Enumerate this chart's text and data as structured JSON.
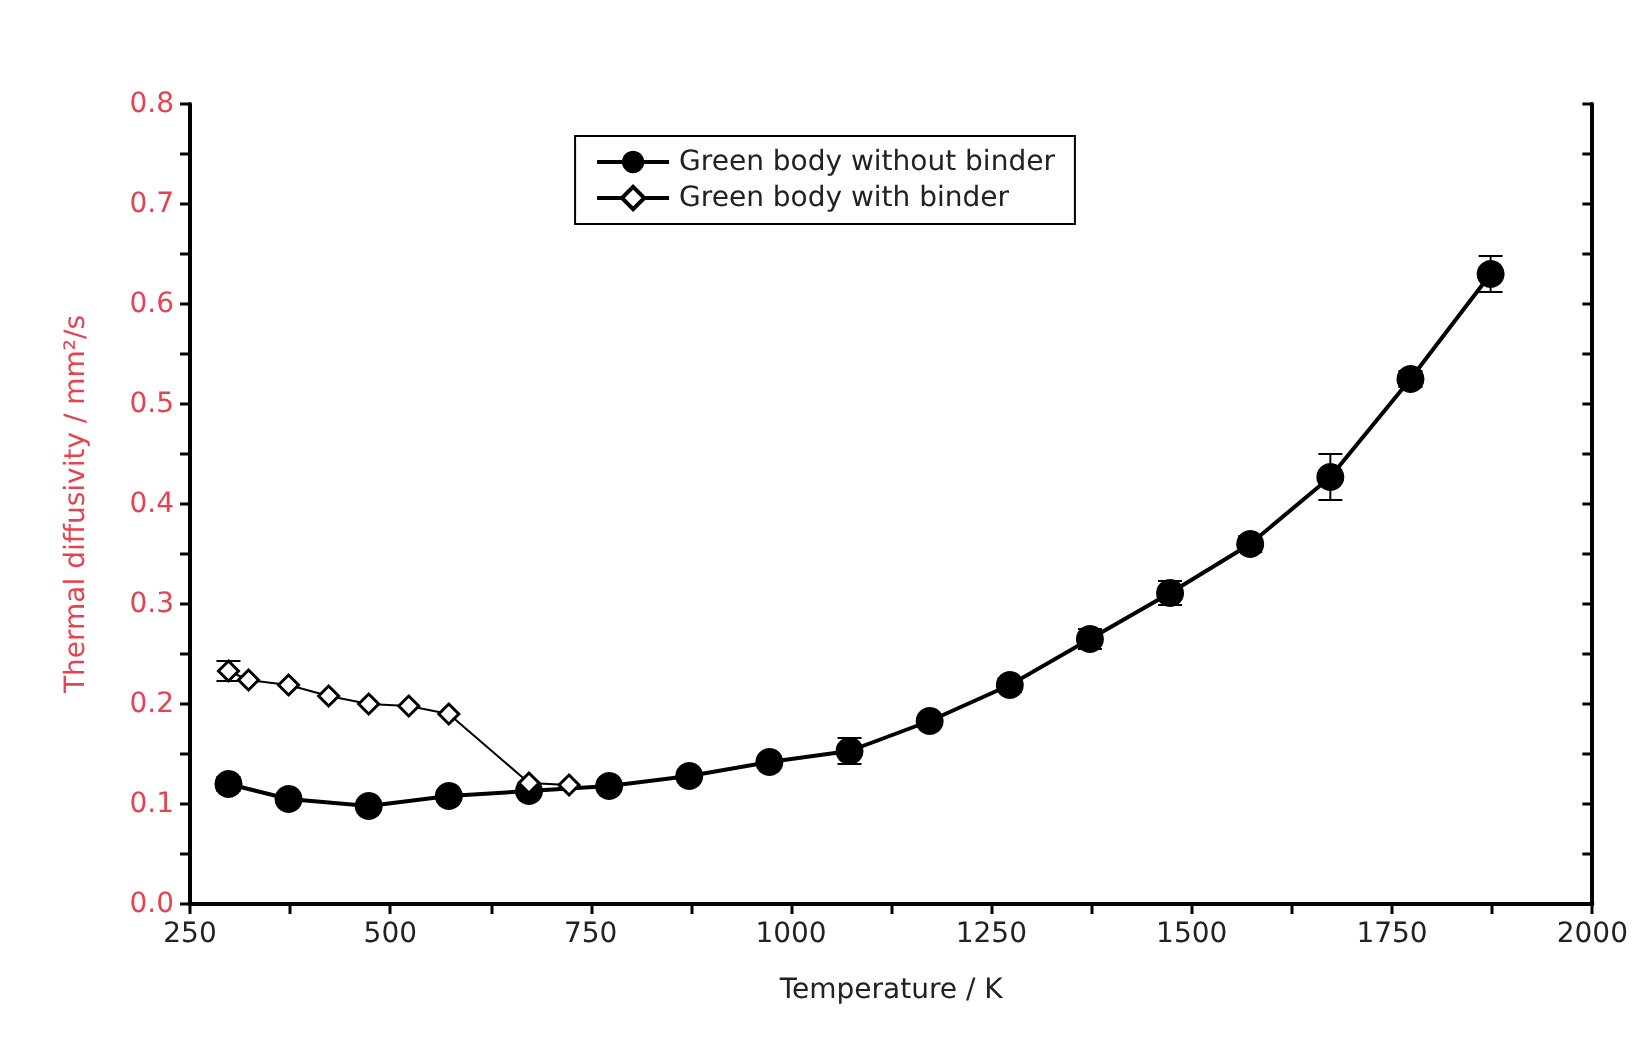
{
  "chart_data": {
    "type": "line",
    "xlabel": "Temperature / K",
    "ylabel": "Thermal diffusivity / mm²/s",
    "xlim": [
      250,
      2000
    ],
    "xticks": [
      250,
      500,
      750,
      1000,
      1250,
      1500,
      1750,
      2000
    ],
    "ylim": [
      0,
      0.8
    ],
    "yticks": [
      {
        "value": 0,
        "label": "0.0"
      },
      0.1,
      0.2,
      0.3,
      0.4,
      0.5,
      0.6,
      0.7,
      0.8
    ],
    "legend": "top",
    "grid": false,
    "series": [
      {
        "name": "Green body without binder",
        "color": "#000000",
        "marker": "circle",
        "x": [
          298,
          373,
          473,
          573,
          673,
          773,
          873,
          973,
          1073,
          1173,
          1273,
          1373,
          1473,
          1573,
          1673,
          1773,
          1873
        ],
        "values": [
          0.12,
          0.105,
          0.098,
          0.108,
          0.113,
          0.118,
          0.128,
          0.142,
          0.153,
          0.183,
          0.219,
          0.265,
          0.311,
          0.36,
          0.427,
          0.525,
          0.63
        ],
        "errors": [
          0.007,
          0.004,
          0.004,
          0.004,
          0.005,
          0.004,
          0.004,
          0.004,
          0.013,
          0.004,
          0.007,
          0.01,
          0.012,
          0.008,
          0.023,
          0.008,
          0.018
        ]
      },
      {
        "name": "Green body with binder",
        "color": "#000000",
        "marker": "diamond",
        "x": [
          298,
          323,
          373,
          423,
          473,
          523,
          573,
          673,
          723
        ],
        "values": [
          0.233,
          0.224,
          0.219,
          0.208,
          0.2,
          0.198,
          0.19,
          0.121,
          0.119
        ],
        "errors": [
          0.01,
          null,
          null,
          null,
          null,
          null,
          null,
          null,
          null
        ]
      }
    ]
  }
}
